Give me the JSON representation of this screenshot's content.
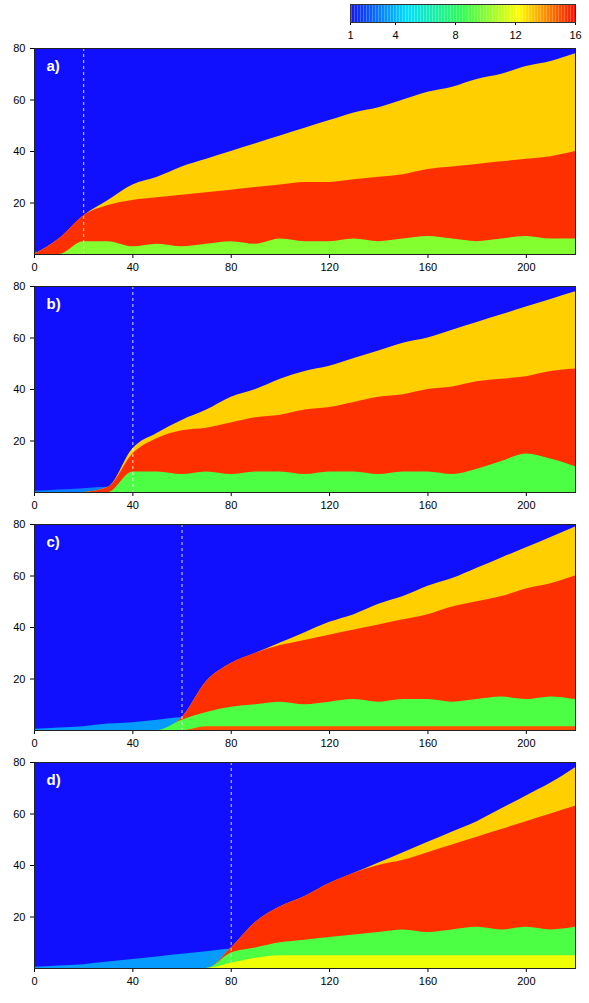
{
  "colorbar": {
    "range": [
      1,
      16
    ],
    "ticks": [
      1,
      4,
      8,
      12,
      16
    ]
  },
  "chart_data": [
    {
      "type": "area",
      "panel": "a)",
      "xlim": [
        0,
        220
      ],
      "ylim": [
        0,
        80
      ],
      "xticks": [
        0,
        40,
        80,
        120,
        160,
        200
      ],
      "yticks": [
        20,
        40,
        60,
        80
      ],
      "background": 1,
      "marker_x": 20,
      "x": [
        0,
        10,
        20,
        30,
        40,
        50,
        60,
        70,
        80,
        90,
        100,
        110,
        120,
        130,
        140,
        150,
        160,
        170,
        180,
        190,
        200,
        210,
        220
      ],
      "layers": [
        {
          "level": 3,
          "values": [
            1,
            0.5,
            0,
            0,
            0,
            0,
            0,
            0,
            0,
            0,
            0,
            0,
            0,
            0,
            0,
            0,
            0,
            0,
            0,
            0,
            0,
            0,
            0
          ]
        },
        {
          "level": 13,
          "values": [
            0,
            6,
            15,
            21,
            27,
            30,
            34,
            37,
            40,
            43,
            46,
            49,
            52,
            55,
            57,
            60,
            63,
            65,
            68,
            70,
            73,
            75,
            78
          ]
        },
        {
          "level": 15.5,
          "values": [
            0,
            6,
            15,
            19,
            21,
            22,
            23,
            24,
            25,
            26,
            27,
            28,
            28,
            29,
            30,
            31,
            33,
            34,
            35,
            36,
            37,
            38,
            40
          ]
        },
        {
          "level": 10,
          "values": [
            0,
            0,
            5,
            5,
            3,
            4,
            3,
            4,
            5,
            4,
            6,
            5,
            5,
            6,
            5,
            6,
            7,
            6,
            5,
            6,
            7,
            6,
            6
          ]
        }
      ]
    },
    {
      "type": "area",
      "panel": "b)",
      "xlim": [
        0,
        220
      ],
      "ylim": [
        0,
        80
      ],
      "xticks": [
        0,
        40,
        80,
        120,
        160,
        200
      ],
      "yticks": [
        20,
        40,
        60,
        80
      ],
      "background": 1,
      "marker_x": 40,
      "x": [
        0,
        10,
        20,
        30,
        40,
        50,
        60,
        70,
        80,
        90,
        100,
        110,
        120,
        130,
        140,
        150,
        160,
        170,
        180,
        190,
        200,
        210,
        220
      ],
      "layers": [
        {
          "level": 3,
          "values": [
            0.5,
            1,
            1.5,
            2,
            0,
            0,
            0,
            0,
            0,
            0,
            0,
            0,
            0,
            0,
            0,
            0,
            0,
            0,
            0,
            0,
            0,
            0,
            0
          ]
        },
        {
          "level": 13,
          "values": [
            0,
            0,
            0,
            2,
            17,
            23,
            28,
            32,
            37,
            40,
            44,
            47,
            49,
            52,
            55,
            58,
            60,
            63,
            66,
            69,
            72,
            75,
            78
          ]
        },
        {
          "level": 15.5,
          "values": [
            0,
            0,
            0,
            2,
            15,
            21,
            24,
            25,
            27,
            29,
            30,
            32,
            33,
            35,
            37,
            38,
            40,
            41,
            43,
            44,
            45,
            47,
            48
          ]
        },
        {
          "level": 9,
          "values": [
            0,
            0,
            0,
            0,
            8,
            8,
            7,
            8,
            7,
            8,
            8,
            7,
            8,
            8,
            7,
            8,
            8,
            7,
            9,
            12,
            15,
            13,
            10
          ]
        }
      ]
    },
    {
      "type": "area",
      "panel": "c)",
      "xlim": [
        0,
        220
      ],
      "ylim": [
        0,
        80
      ],
      "xticks": [
        0,
        40,
        80,
        120,
        160,
        200
      ],
      "yticks": [
        20,
        40,
        60,
        80
      ],
      "background": 1,
      "marker_x": 60,
      "x": [
        0,
        10,
        20,
        30,
        40,
        50,
        60,
        70,
        80,
        90,
        100,
        110,
        120,
        130,
        140,
        150,
        160,
        170,
        180,
        190,
        200,
        210,
        220
      ],
      "layers": [
        {
          "level": 3.5,
          "values": [
            0.5,
            1,
            1.5,
            2.5,
            3,
            4,
            5,
            0,
            0,
            0,
            0,
            0,
            0,
            0,
            0,
            0,
            0,
            0,
            0,
            0,
            0,
            0,
            0
          ]
        },
        {
          "level": 13,
          "values": [
            0,
            0,
            0,
            0,
            0,
            0,
            5,
            19,
            26,
            30,
            34,
            38,
            42,
            45,
            49,
            52,
            56,
            59,
            63,
            67,
            71,
            75,
            79
          ]
        },
        {
          "level": 15.5,
          "values": [
            0,
            0,
            0,
            0,
            0,
            0,
            5,
            19,
            26,
            30,
            33,
            35,
            37,
            39,
            41,
            43,
            45,
            48,
            50,
            52,
            55,
            57,
            60
          ]
        },
        {
          "level": 9,
          "values": [
            0,
            0,
            0,
            0,
            0,
            0,
            4,
            7,
            9,
            10,
            11,
            10,
            11,
            12,
            11,
            12,
            12,
            11,
            12,
            13,
            12,
            13,
            12
          ]
        },
        {
          "level": 15,
          "values": [
            0,
            0,
            0,
            0,
            0,
            0,
            0,
            1.5,
            1.5,
            1.5,
            1.5,
            1.5,
            1.5,
            1.5,
            1.5,
            1.5,
            1.5,
            1.5,
            1.5,
            1.5,
            1.5,
            1.5,
            1.5
          ]
        }
      ]
    },
    {
      "type": "area",
      "panel": "d)",
      "xlim": [
        0,
        220
      ],
      "ylim": [
        0,
        80
      ],
      "xticks": [
        0,
        40,
        80,
        120,
        160,
        200
      ],
      "yticks": [
        20,
        40,
        60,
        80
      ],
      "background": 1,
      "marker_x": 80,
      "x": [
        0,
        10,
        20,
        30,
        40,
        50,
        60,
        70,
        80,
        90,
        100,
        110,
        120,
        130,
        140,
        150,
        160,
        170,
        180,
        190,
        200,
        210,
        220
      ],
      "layers": [
        {
          "level": 3.5,
          "values": [
            0.5,
            1,
            1.5,
            2.5,
            3.5,
            4.5,
            5.5,
            6.5,
            7.5,
            0,
            0,
            0,
            0,
            0,
            0,
            0,
            0,
            0,
            0,
            0,
            0,
            0,
            0
          ]
        },
        {
          "level": 13,
          "values": [
            0,
            0,
            0,
            0,
            0,
            0,
            0,
            0,
            8,
            18,
            24,
            28,
            33,
            37,
            41,
            45,
            49,
            53,
            57,
            62,
            67,
            72,
            78
          ]
        },
        {
          "level": 15.5,
          "values": [
            0,
            0,
            0,
            0,
            0,
            0,
            0,
            0,
            8,
            18,
            24,
            28,
            33,
            37,
            40,
            42,
            45,
            48,
            51,
            54,
            57,
            60,
            63
          ]
        },
        {
          "level": 9,
          "values": [
            0,
            0,
            0,
            0,
            0,
            0,
            0,
            0,
            6,
            8,
            10,
            11,
            12,
            13,
            14,
            15,
            14,
            15,
            16,
            15,
            16,
            15,
            16
          ]
        },
        {
          "level": 12,
          "values": [
            0,
            0,
            0,
            0,
            0,
            0,
            0,
            0,
            2,
            4,
            5,
            5,
            5,
            5,
            5,
            5,
            5,
            5,
            5,
            5,
            5,
            5,
            5
          ]
        }
      ]
    }
  ]
}
